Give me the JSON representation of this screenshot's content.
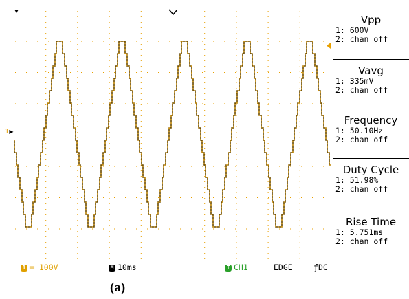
{
  "measurements": [
    {
      "title": "Vpp",
      "ch1": "1: 600V",
      "ch2": "2: chan off"
    },
    {
      "title": "Vavg",
      "ch1": "1: 335mV",
      "ch2": "2: chan off"
    },
    {
      "title": "Frequency",
      "ch1": "1: 50.10Hz",
      "ch2": "2: chan off"
    },
    {
      "title": "Duty Cycle",
      "ch1": "1: 51.98%",
      "ch2": "2: chan off"
    },
    {
      "title": "Rise Time",
      "ch1": "1: 5.751ms",
      "ch2": "2: chan off"
    }
  ],
  "status": {
    "ch1_badge": "1",
    "ch1_coupling_symbol": "═",
    "ch1_scale": "100V",
    "timebase_badge": "M",
    "timebase": "10ms",
    "trigger_badge": "T",
    "trigger_source": "CH1",
    "trigger_type": "EDGE",
    "trigger_slope_symbol": "ƒ",
    "trigger_coupling": "DC"
  },
  "channel_marker": "1",
  "caption": "(a)",
  "colors": {
    "trace": "#e8a000",
    "grid_dots": "#e8a000",
    "status_channel": "#e0a000",
    "trigger_badge": "#2aa02a",
    "status_text": "#000000"
  },
  "waveform": {
    "shape": "stepped-triangle",
    "cycles": 5,
    "levels_per_half_cycle": 15
  }
}
